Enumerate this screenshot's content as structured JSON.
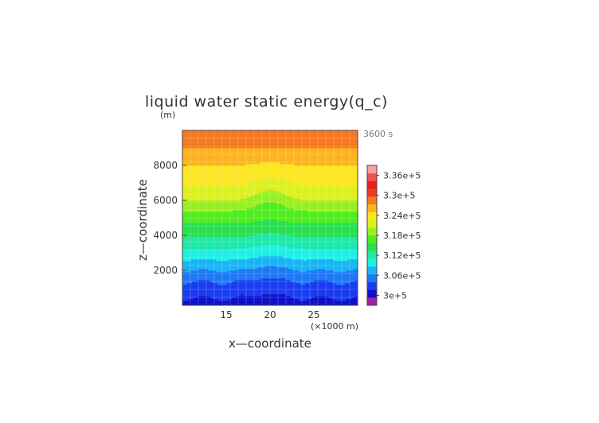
{
  "chart_data": {
    "type": "contour",
    "title": "liquid water static energy(q_c)",
    "xlabel": "x—coordinate",
    "ylabel": "z—coordinate",
    "yunit": "(m)",
    "xunit": "(×1000 m)",
    "time_label": "3600 s",
    "xlim": [
      10,
      30
    ],
    "ylim": [
      0,
      10000
    ],
    "x_ticks": [
      15,
      20,
      25
    ],
    "y_ticks": [
      2000,
      4000,
      6000,
      8000
    ],
    "grid": true,
    "colorbar": {
      "position": "right",
      "min": 297000,
      "max": 339000,
      "step": 3000,
      "tick_values": [
        300000,
        306000,
        312000,
        318000,
        324000,
        330000,
        336000
      ],
      "tick_labels": [
        "3e+5",
        "3.06e+5",
        "3.12e+5",
        "3.18e+5",
        "3.24e+5",
        "3.3e+5",
        "3.36e+5"
      ],
      "colors": [
        "#a020a8",
        "#1010c8",
        "#1a3cf0",
        "#1f78f5",
        "#18b4f5",
        "#1ef0e6",
        "#20e8a8",
        "#28e050",
        "#50ec20",
        "#98f020",
        "#dcf020",
        "#fce61e",
        "#fcb41e",
        "#f8781e",
        "#f03c1e",
        "#e81e1e",
        "#f05050",
        "#f8a0a0"
      ]
    },
    "field": {
      "description_fn": "horizontally stratified energy with a bump near x=20",
      "base_profile_z": [
        0,
        1000,
        2000,
        3000,
        4000,
        5000,
        6000,
        7000,
        8000,
        9000,
        10000
      ],
      "base_profile_value": [
        302000,
        304500,
        309000,
        314000,
        318500,
        322000,
        327000,
        330500,
        333000,
        336000,
        338000
      ],
      "bump_center_x": 20,
      "bump_width_x": 2.2
    }
  }
}
